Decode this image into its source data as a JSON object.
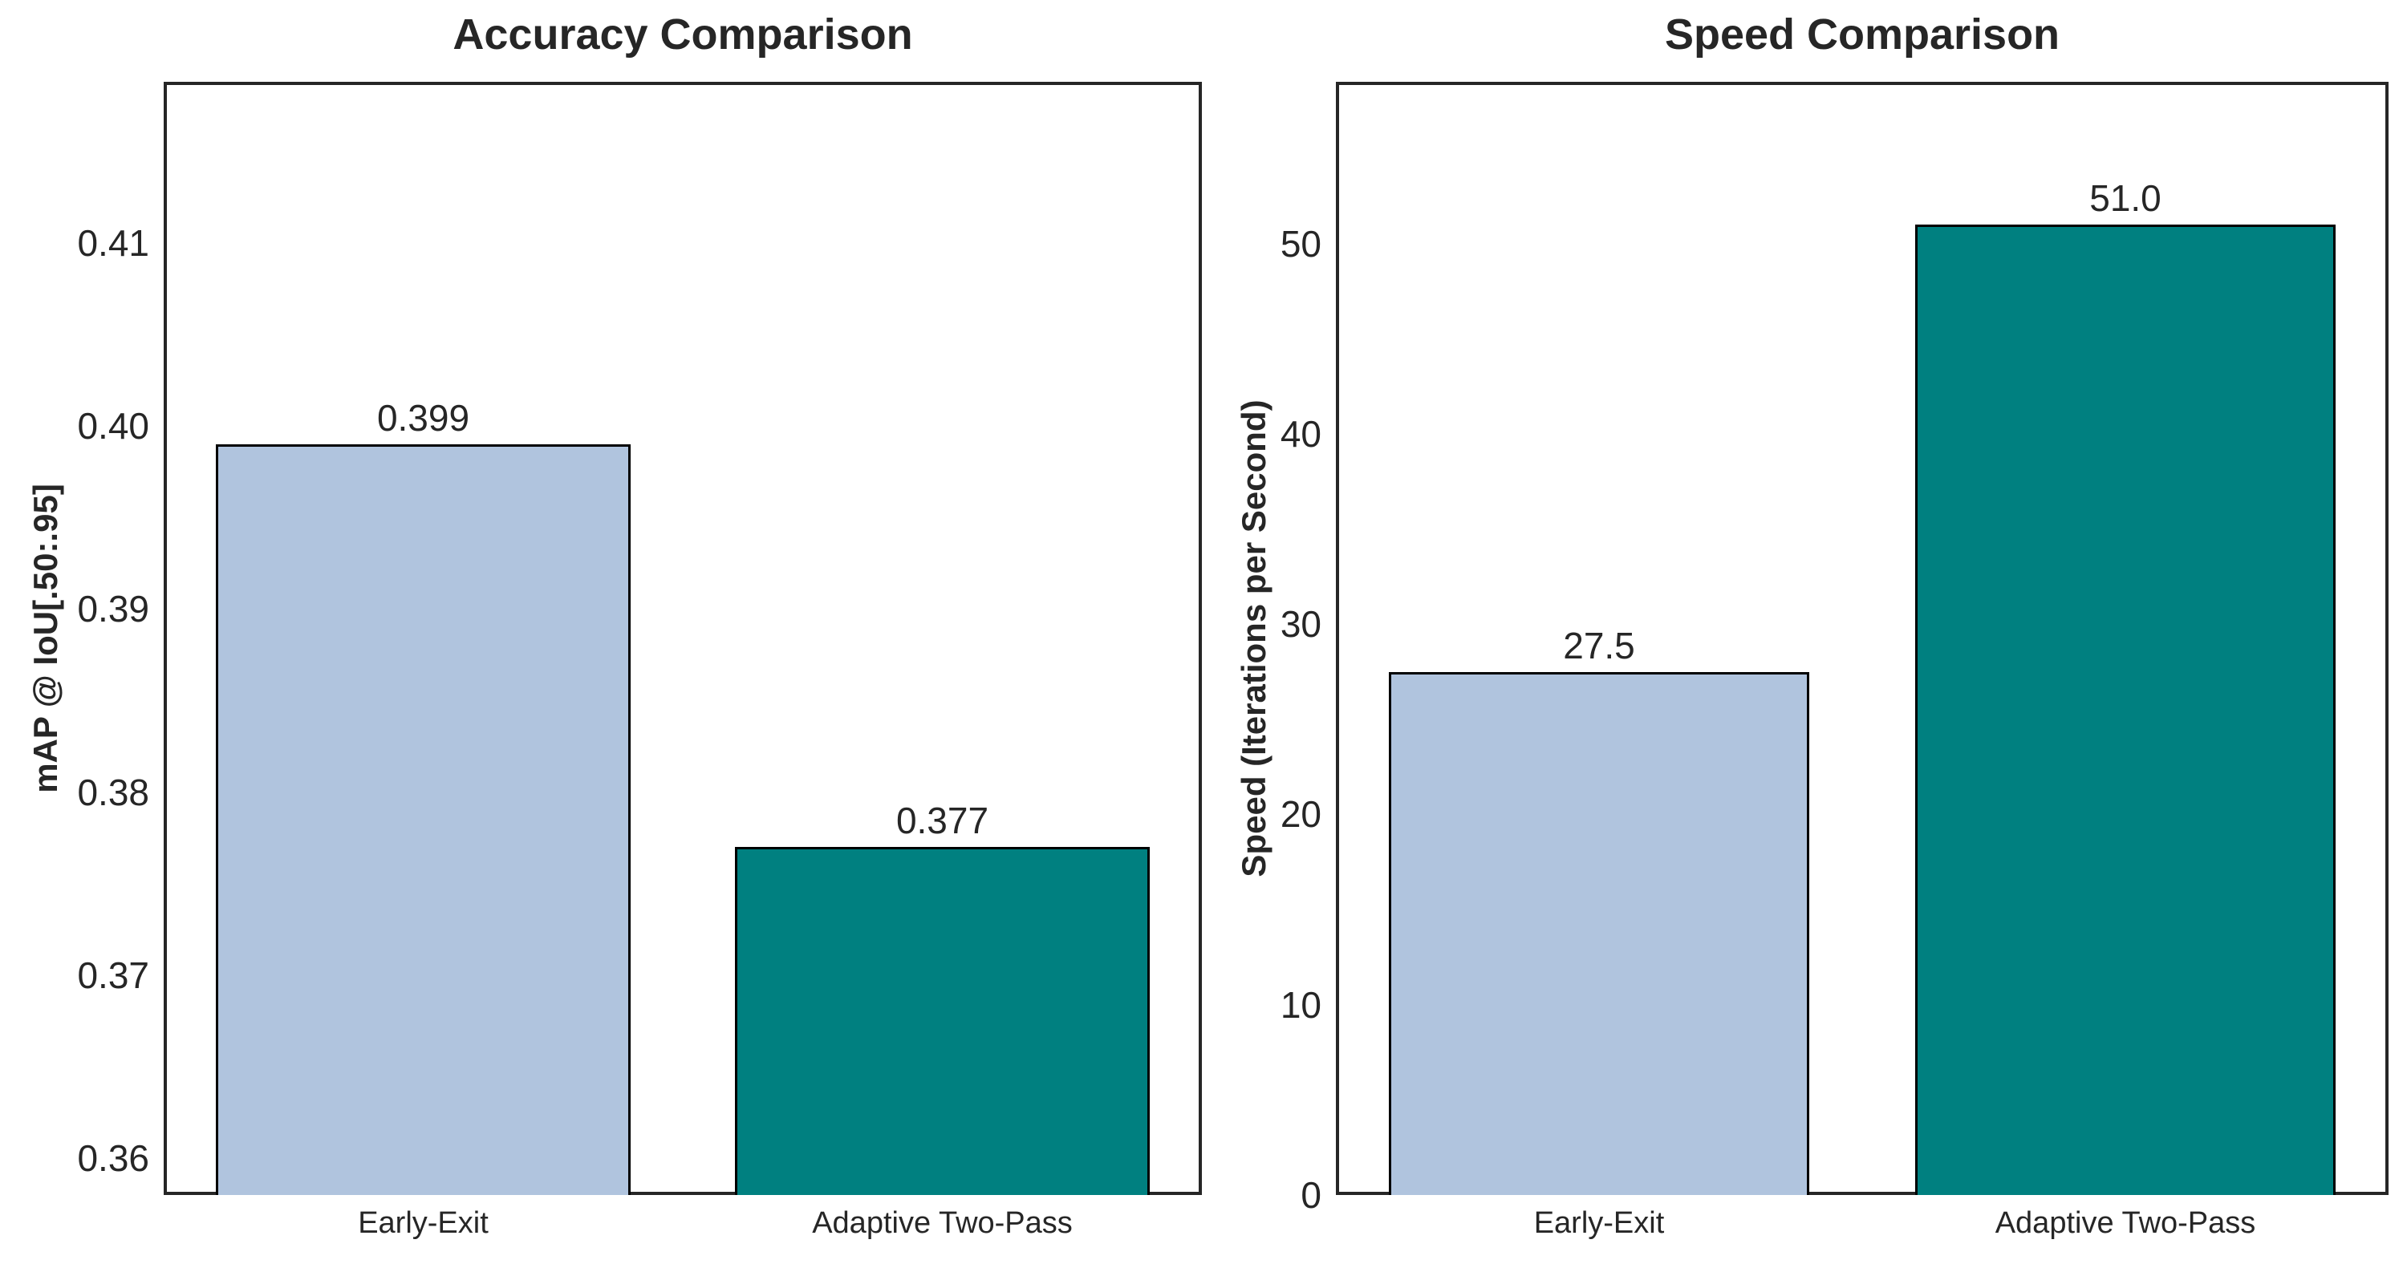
{
  "figure": {
    "background_color": "#ffffff",
    "text_color": "#262626",
    "spine_color": "#262626",
    "bar_edge_color": "#000000",
    "accent_lightblue": "#b0c4de",
    "accent_teal": "#008080"
  },
  "chart_data": [
    {
      "type": "bar",
      "title": "Accuracy Comparison",
      "xlabel": "",
      "ylabel": "mAP @ IoU[.50:.95]",
      "categories": [
        "Early-Exit",
        "Adaptive Two-Pass"
      ],
      "values": [
        0.399,
        0.377
      ],
      "value_labels": [
        "0.399",
        "0.377"
      ],
      "bar_colors": [
        "#b0c4de",
        "#008080"
      ],
      "ylim": [
        0.358,
        0.4188
      ],
      "yticks": [
        0.36,
        0.37,
        0.38,
        0.39,
        0.4,
        0.41
      ],
      "ytick_labels": [
        "0.36",
        "0.37",
        "0.38",
        "0.39",
        "0.40",
        "0.41"
      ],
      "grid": false,
      "legend": null,
      "bar_width_fraction": 0.8
    },
    {
      "type": "bar",
      "title": "Speed Comparison",
      "xlabel": "",
      "ylabel": "Speed (Iterations per Second)",
      "categories": [
        "Early-Exit",
        "Adaptive Two-Pass"
      ],
      "values": [
        27.5,
        51.0
      ],
      "value_labels": [
        "27.5",
        "51.0"
      ],
      "bar_colors": [
        "#b0c4de",
        "#008080"
      ],
      "ylim": [
        0,
        58.5
      ],
      "yticks": [
        0,
        10,
        20,
        30,
        40,
        50
      ],
      "ytick_labels": [
        "0",
        "10",
        "20",
        "30",
        "40",
        "50"
      ],
      "grid": false,
      "legend": null,
      "bar_width_fraction": 0.8
    }
  ]
}
